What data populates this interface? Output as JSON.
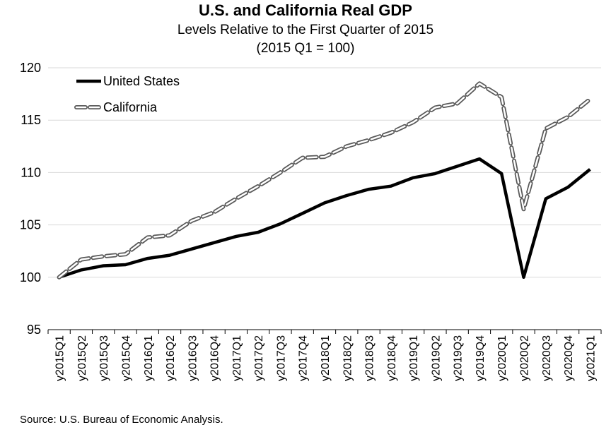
{
  "chart_data": {
    "type": "line",
    "title": "U.S. and California Real GDP",
    "subtitle": [
      "Levels Relative to the First Quarter of 2015",
      "(2015 Q1 = 100)"
    ],
    "xlabel": "",
    "ylabel": "",
    "ylim": [
      95,
      120
    ],
    "yticks": [
      95,
      100,
      105,
      110,
      115,
      120
    ],
    "grid": true,
    "legend_position": "top-left",
    "categories": [
      "y2015Q1",
      "y2015Q2",
      "y2015Q3",
      "y2015Q4",
      "y2016Q1",
      "y2016Q2",
      "y2016Q3",
      "y2016Q4",
      "y2017Q1",
      "y2017Q2",
      "y2017Q3",
      "y2017Q4",
      "y2018Q1",
      "y2018Q2",
      "y2018Q3",
      "y2018Q4",
      "y2019Q1",
      "y2019Q2",
      "y2019Q3",
      "y2019Q4",
      "y2020Q1",
      "y2020Q2",
      "y2020Q3",
      "y2020Q4",
      "y2021Q1"
    ],
    "series": [
      {
        "name": "United States",
        "style": "solid",
        "color": "#000000",
        "values": [
          100.0,
          100.7,
          101.1,
          101.2,
          101.8,
          102.1,
          102.7,
          103.3,
          103.9,
          104.3,
          105.1,
          106.1,
          107.1,
          107.8,
          108.4,
          108.7,
          109.5,
          109.9,
          110.6,
          111.3,
          109.9,
          100.0,
          107.5,
          108.6,
          110.3
        ]
      },
      {
        "name": "California",
        "style": "dashed",
        "color": "#595959",
        "values": [
          100.0,
          101.7,
          102.0,
          102.2,
          103.8,
          104.0,
          105.4,
          106.2,
          107.5,
          108.7,
          110.0,
          111.4,
          111.5,
          112.5,
          113.1,
          113.8,
          114.8,
          116.2,
          116.6,
          118.5,
          117.2,
          106.5,
          114.2,
          115.3,
          117.0
        ]
      }
    ]
  },
  "source": "Source: U.S. Bureau of Economic Analysis."
}
